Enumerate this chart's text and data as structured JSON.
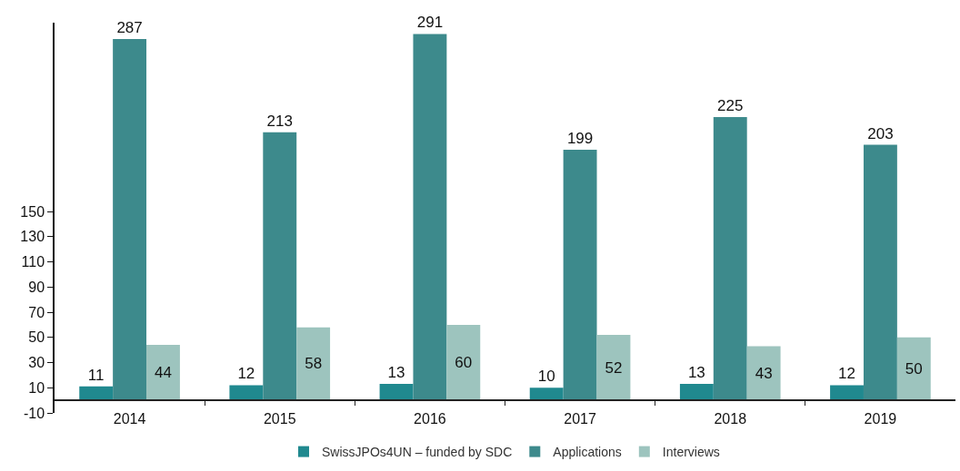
{
  "chart_data": {
    "type": "bar",
    "categories": [
      "2014",
      "2015",
      "2016",
      "2017",
      "2018",
      "2019"
    ],
    "series": [
      {
        "name": "SwissJPOs4UN – funded by SDC",
        "color": "#20898f",
        "values": [
          11,
          12,
          13,
          10,
          13,
          12
        ]
      },
      {
        "name": "Applications",
        "color": "#3d8a8c",
        "values": [
          287,
          213,
          291,
          199,
          225,
          203
        ]
      },
      {
        "name": "Interviews",
        "color": "#9dc4be",
        "values": [
          44,
          58,
          60,
          52,
          43,
          50
        ]
      }
    ],
    "ylim": [
      -10,
      300
    ],
    "yticks": [
      -10,
      10,
      30,
      50,
      70,
      90,
      110,
      130,
      150
    ],
    "legend": "bottom",
    "data_labels": true
  }
}
